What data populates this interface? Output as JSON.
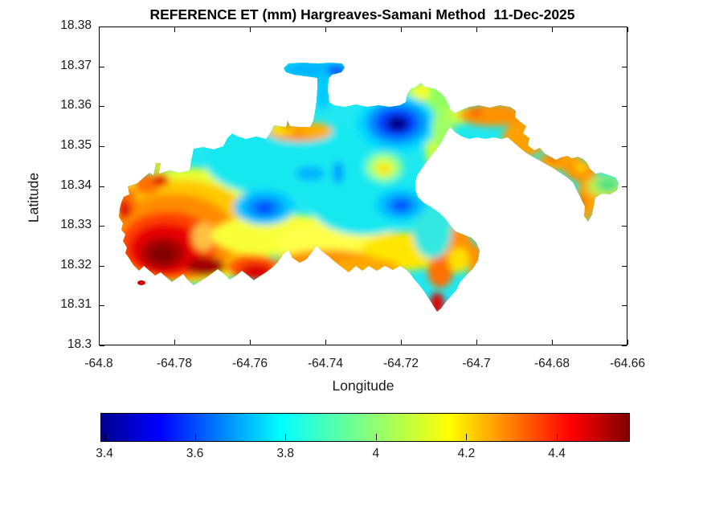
{
  "figure": {
    "title": "REFERENCE ET (mm) Hargreaves-Samani Method  11-Dec-2025",
    "variable": "Reference ET (mm)",
    "method": "Hargreaves-Samani",
    "date": "11-Dec-2025"
  },
  "chart_data": {
    "type": "heatmap",
    "subtype": "filled-contour-map",
    "title": "REFERENCE ET (mm) Hargreaves-Samani Method  11-Dec-2025",
    "xlabel": "Longitude",
    "ylabel": "Latitude",
    "xlim": [
      -64.8,
      -64.66
    ],
    "ylim": [
      18.3,
      18.38
    ],
    "x_ticks": [
      "-64.8",
      "-64.78",
      "-64.76",
      "-64.74",
      "-64.72",
      "-64.7",
      "-64.68",
      "-64.66"
    ],
    "y_ticks": [
      "18.38",
      "18.37",
      "18.36",
      "18.35",
      "18.34",
      "18.33",
      "18.32",
      "18.31",
      "18.3"
    ],
    "grid": false,
    "colormap": "jet",
    "colorbar": {
      "orientation": "horizontal",
      "position": "south-outside",
      "ticks": [
        "3.4",
        "3.6",
        "3.8",
        "4",
        "4.2",
        "4.4"
      ],
      "tick_values": [
        3.4,
        3.6,
        3.8,
        4.0,
        4.2,
        4.4
      ],
      "range": [
        3.39,
        4.56
      ],
      "units": "mm"
    },
    "region_note": "ET field shaded only over island land mass; ocean and interior bay left white (no data)",
    "features": [
      {
        "label": "minimum ET - dark blue core",
        "lon": -64.721,
        "lat": 18.356,
        "value": 3.4
      },
      {
        "label": "north peninsula blue strip",
        "lon": -64.742,
        "lat": 18.369,
        "value": 3.65
      },
      {
        "label": "blue low patch west-central",
        "lon": -64.756,
        "lat": 18.335,
        "value": 3.55
      },
      {
        "label": "blue low patch east-central",
        "lon": -64.72,
        "lat": 18.335,
        "value": 3.6
      },
      {
        "label": "cyan band across north-central interior",
        "lon": -64.75,
        "lat": 18.345,
        "value": 3.8
      },
      {
        "label": "local yellow warm spot inside cyan zone",
        "lon": -64.724,
        "lat": 18.345,
        "value": 4.05
      },
      {
        "label": "maximum ET - dark red core southwest",
        "lon": -64.783,
        "lat": 18.324,
        "value": 4.56
      },
      {
        "label": "red-orange southwest lobe",
        "lon": -64.77,
        "lat": 18.327,
        "value": 4.4
      },
      {
        "label": "orange strip on north-east coast",
        "lon": -64.72,
        "lat": 18.352,
        "value": 4.3
      },
      {
        "label": "orange eastern island chain",
        "lon": -64.676,
        "lat": 18.338,
        "value": 4.25
      },
      {
        "label": "green patch at far east tip",
        "lon": -64.666,
        "lat": 18.34,
        "value": 3.9
      },
      {
        "label": "red southern peninsula tip",
        "lon": -64.71,
        "lat": 18.312,
        "value": 4.45
      },
      {
        "label": "small offshore islet southwest",
        "lon": -64.789,
        "lat": 18.316,
        "value": 4.45
      }
    ]
  }
}
